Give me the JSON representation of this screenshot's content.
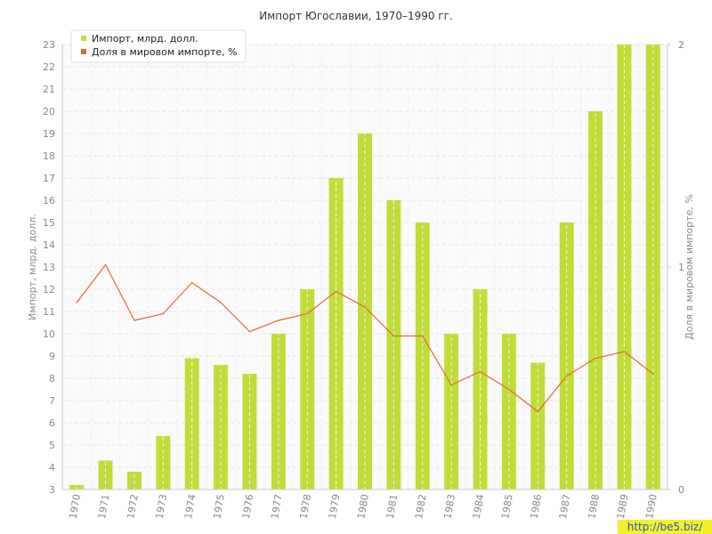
{
  "chart_data": {
    "type": "bar",
    "title": "Импорт Югославии, 1970–1990 гг.",
    "ylabel": "Импорт, млрд. долл.",
    "y2label": "Доля в мировом импорте, %",
    "categories": [
      "1970",
      "1971",
      "1972",
      "1973",
      "1974",
      "1975",
      "1976",
      "1977",
      "1978",
      "1979",
      "1980",
      "1981",
      "1982",
      "1983",
      "1984",
      "1985",
      "1986",
      "1987",
      "1988",
      "1989",
      "1990"
    ],
    "ylim": [
      3,
      23
    ],
    "y2lim": [
      0,
      2
    ],
    "yticks": [
      "3",
      "4",
      "5",
      "6",
      "7",
      "8",
      "9",
      "10",
      "11",
      "12",
      "13",
      "14",
      "15",
      "16",
      "17",
      "18",
      "19",
      "20",
      "21",
      "22",
      "23"
    ],
    "y2ticks": [
      "0",
      "1",
      "2"
    ],
    "grid": true,
    "legend_position": "top-left",
    "series": [
      {
        "name": "Импорт, млрд. долл.",
        "type": "bar",
        "axis": "left",
        "color": "#c0dd3a",
        "values": [
          3.2,
          4.3,
          3.8,
          5.4,
          8.9,
          8.6,
          8.2,
          10.0,
          12.0,
          17.0,
          19.0,
          16.0,
          15.0,
          10.0,
          12.0,
          10.0,
          8.7,
          15.0,
          20.0,
          23.0,
          23.0
        ]
      },
      {
        "name": "Доля в мировом импорте, %",
        "type": "line",
        "axis": "right",
        "color": "#e06a3a",
        "values": [
          0.84,
          1.01,
          0.76,
          0.79,
          0.93,
          0.84,
          0.71,
          0.76,
          0.79,
          0.89,
          0.82,
          0.69,
          0.69,
          0.47,
          0.53,
          0.45,
          0.35,
          0.51,
          0.59,
          0.62,
          0.52
        ]
      }
    ]
  },
  "watermark": "http://be5.biz/"
}
